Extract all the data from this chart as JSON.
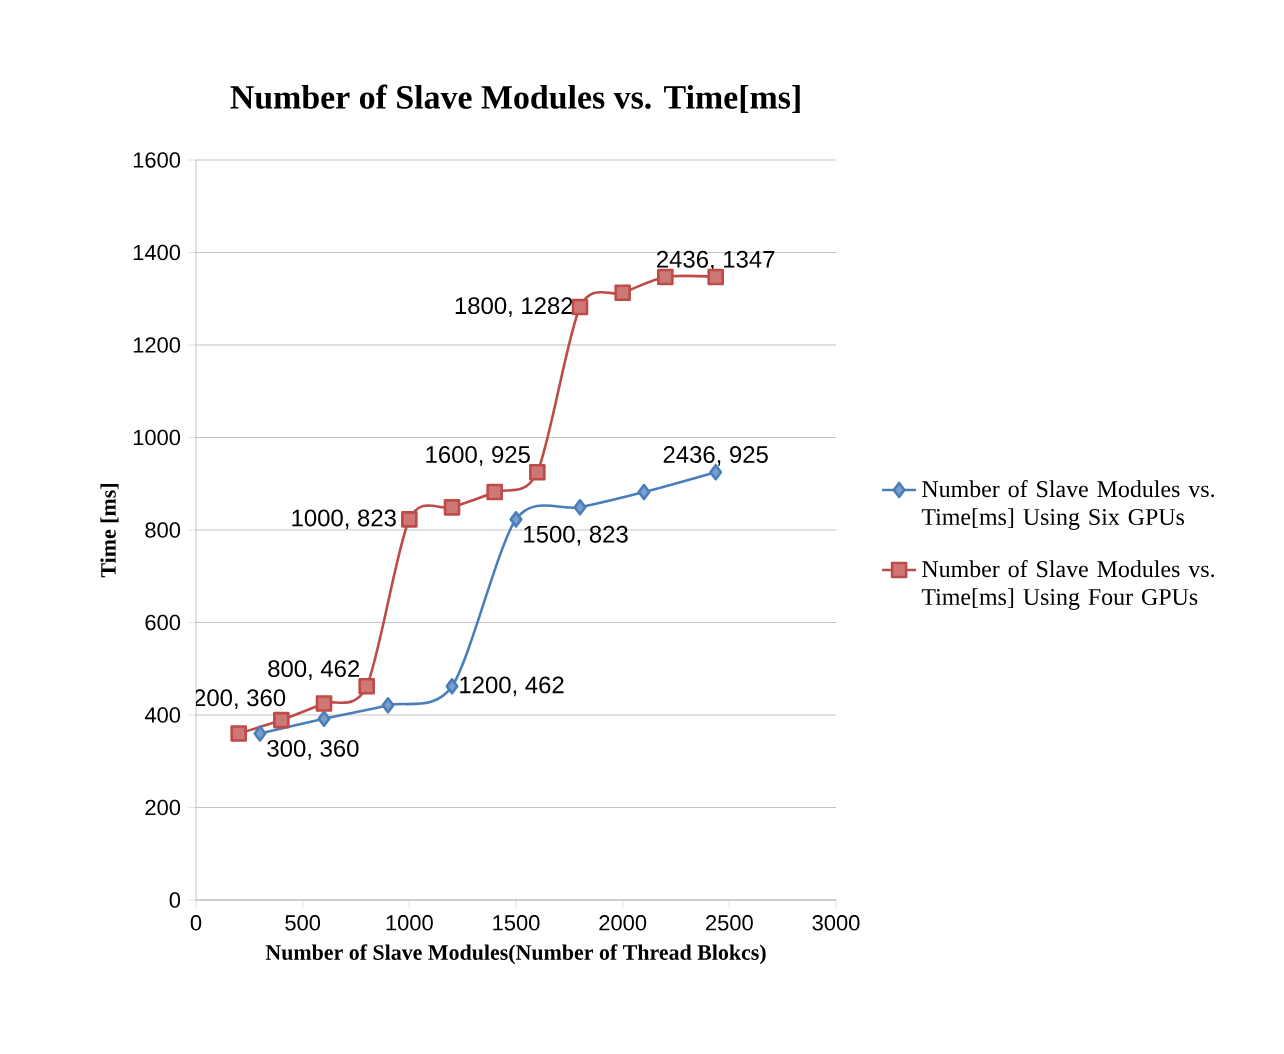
{
  "chart_data": {
    "type": "line",
    "title": "Number of Slave Modules vs. Time[ms]",
    "xlabel": "Number of Slave Modules(Number of Thread Blokcs)",
    "ylabel": "Time [ms]",
    "xlim": [
      0,
      3000
    ],
    "xticks": [
      0,
      500,
      1000,
      1500,
      2000,
      2500,
      3000
    ],
    "ylim": [
      0,
      1600
    ],
    "yticks": [
      0,
      200,
      400,
      600,
      800,
      1000,
      1200,
      1400,
      1600
    ],
    "grid": "y",
    "legend": "right",
    "series": [
      {
        "name": "Number of Slave Modules vs. Time[ms] Using Six GPUs",
        "color": "#4a7ebb",
        "marker": "diamond",
        "x": [
          300,
          600,
          900,
          1200,
          1500,
          1800,
          2100,
          2436
        ],
        "values": [
          360,
          392,
          421,
          462,
          823,
          849,
          882,
          925
        ]
      },
      {
        "name": "Number of Slave Modules vs. Time[ms] Using Four GPUs",
        "color": "#be4b48",
        "marker": "square",
        "x": [
          200,
          400,
          600,
          800,
          1000,
          1200,
          1400,
          1600,
          1800,
          2000,
          2200,
          2436
        ],
        "values": [
          360,
          389,
          425,
          462,
          823,
          849,
          882,
          925,
          1282,
          1313,
          1347,
          1347
        ]
      }
    ],
    "annotations": [
      {
        "text": "200, 360",
        "x": 200,
        "y": 360
      },
      {
        "text": "300, 360",
        "x": 300,
        "y": 360
      },
      {
        "text": "800, 462",
        "x": 800,
        "y": 462
      },
      {
        "text": "1200, 462",
        "x": 1200,
        "y": 462
      },
      {
        "text": "1000, 823",
        "x": 1000,
        "y": 823
      },
      {
        "text": "1500, 823",
        "x": 1500,
        "y": 823
      },
      {
        "text": "1600, 925",
        "x": 1600,
        "y": 925
      },
      {
        "text": "2436, 925",
        "x": 2436,
        "y": 925
      },
      {
        "text": "1800, 1282",
        "x": 1800,
        "y": 1282
      },
      {
        "text": "2436, 1347",
        "x": 2436,
        "y": 1347
      }
    ]
  }
}
